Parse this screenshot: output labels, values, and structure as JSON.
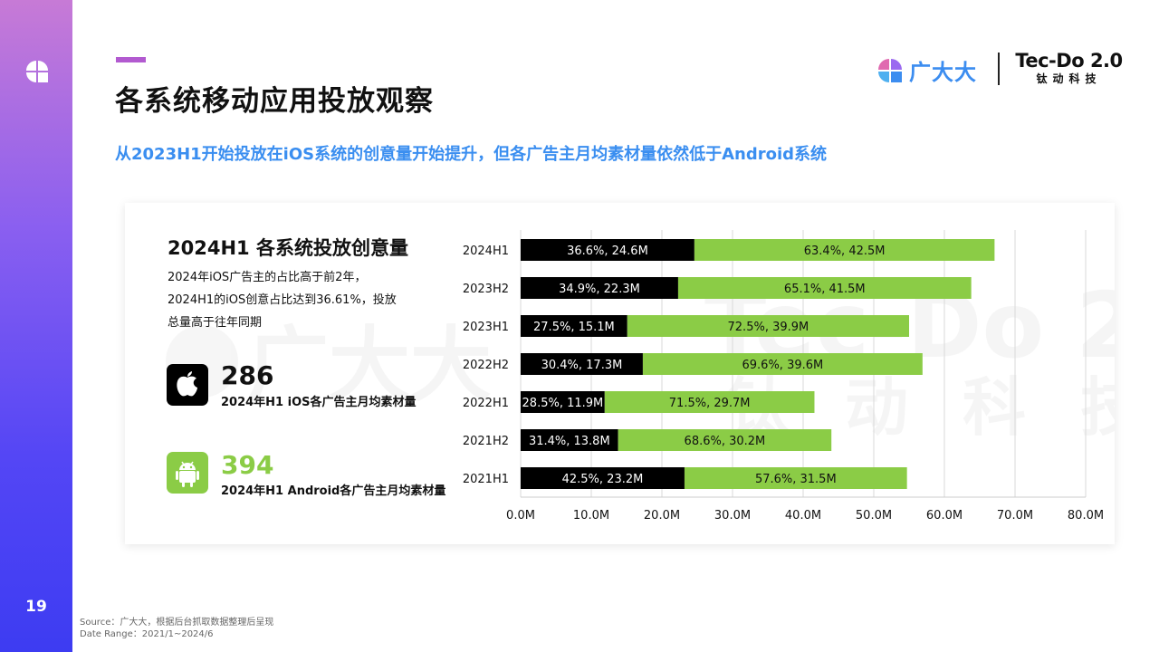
{
  "page": {
    "number": "19",
    "title": "各系统移动应用投放观察",
    "subtitle": "从2023H1开始投放在iOS系统的创意量开始提升，但各广告主月均素材量依然低于Android系统"
  },
  "brand": {
    "gdd": "广大大",
    "tecdo_name": "Tec-Do 2.0",
    "tecdo_sub": "钛动科技"
  },
  "panel": {
    "title": "2024H1 各系统投放创意量",
    "description": [
      "2024年iOS广告主的占比高于前2年，",
      "2024H1的iOS创意占比达到36.61%，投放",
      "总量高于往年同期"
    ],
    "ios": {
      "value": "286",
      "label": "2024年H1 iOS各广告主月均素材量"
    },
    "android": {
      "value": "394",
      "label": "2024年H1 Android各广告主月均素材量"
    }
  },
  "colors": {
    "ios": "#000000",
    "android": "#8bcc46",
    "accent": "#3a8ef0",
    "title_bar": "#b25ad0"
  },
  "chart_data": {
    "type": "bar",
    "orientation": "horizontal",
    "stacked": true,
    "categories": [
      "2024H1",
      "2023H2",
      "2023H1",
      "2022H2",
      "2022H1",
      "2021H2",
      "2021H1"
    ],
    "series": [
      {
        "values": [
          24.6,
          22.3,
          15.1,
          17.3,
          11.9,
          13.8,
          23.2
        ],
        "labels": [
          "36.6%, 24.6M",
          "34.9%, 22.3M",
          "27.5%, 15.1M",
          "30.4%, 17.3M",
          "28.5%, 11.9M",
          "31.4%, 13.8M",
          "42.5%, 23.2M"
        ]
      },
      {
        "values": [
          42.5,
          41.5,
          39.9,
          39.6,
          29.7,
          30.2,
          31.5
        ],
        "labels": [
          "63.4%, 42.5M",
          "65.1%, 41.5M",
          "72.5%, 39.9M",
          "69.6%, 39.6M",
          "71.5%, 29.7M",
          "68.6%, 30.2M",
          "57.6%, 31.5M"
        ]
      }
    ],
    "xlim": [
      0,
      80
    ],
    "xticks": [
      "0.0M",
      "10.0M",
      "20.0M",
      "30.0M",
      "40.0M",
      "50.0M",
      "60.0M",
      "70.0M",
      "80.0M"
    ],
    "grid": true
  },
  "source": {
    "line1": "Source：广大大，根据后台抓取数据整理后呈现",
    "line2": "Date Range：2021/1~2024/6"
  }
}
